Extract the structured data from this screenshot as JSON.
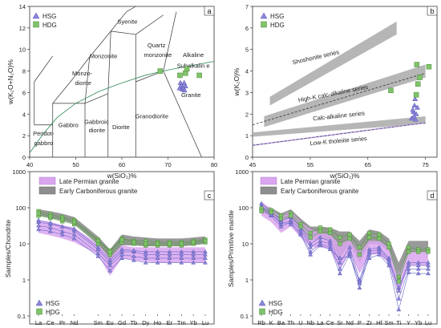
{
  "colors": {
    "hsg": "#8a86d8",
    "hdg": "#7fc36a",
    "late_permian_band": "#d9a6ef",
    "early_carb_band": "#8e8e8e",
    "shoshonite_band": "#a9a9a9",
    "hk_band": "#a9a9a9",
    "calc_band": "#a9a9a9",
    "lowk_line": "#c0a8f0"
  },
  "legend": {
    "hsg": "HSG",
    "hdg": "HDG",
    "late_permian": "Late Permian granite",
    "early_carb": "Early Carboniferous granite"
  },
  "chart_data": [
    {
      "panel": "a",
      "type": "scatter",
      "title": "",
      "xlabel": "w(SiO₂)%",
      "ylabel": "w(K₂O+N₂O)%",
      "xlim": [
        40,
        80
      ],
      "ylim": [
        0,
        14
      ],
      "xticks": [
        "40",
        "50",
        "60",
        "70",
        "80"
      ],
      "yticks": [
        "0",
        "2",
        "4",
        "6",
        "8",
        "10",
        "12",
        "14"
      ],
      "fields": [
        "Syenite",
        "Monzonite",
        "Quartz monzonite",
        "Alkaline",
        "Subalkaline",
        "Monzo-diorite",
        "Granite",
        "Granodiorite",
        "Gabbroic diorite",
        "Diorite",
        "Gabbro",
        "Peridot-gabbro"
      ],
      "series": [
        {
          "name": "HSG",
          "points": [
            [
              72.5,
              6.4
            ],
            [
              72.9,
              6.7
            ],
            [
              73.2,
              6.5
            ],
            [
              73.5,
              6.9
            ],
            [
              73.1,
              6.3
            ],
            [
              73.8,
              6.6
            ],
            [
              72.7,
              6.9
            ],
            [
              73.4,
              6.4
            ],
            [
              73.6,
              6.2
            ]
          ]
        },
        {
          "name": "HDG",
          "points": [
            [
              68.3,
              8.0
            ],
            [
              73.8,
              7.8
            ],
            [
              74.1,
              8.2
            ],
            [
              72.6,
              7.6
            ],
            [
              76.8,
              7.6
            ]
          ]
        }
      ]
    },
    {
      "panel": "b",
      "type": "scatter",
      "title": "",
      "xlabel": "w(SiO₂)%",
      "ylabel": "w(K₂O)%",
      "xlim": [
        45,
        77
      ],
      "ylim": [
        0,
        7
      ],
      "xticks": [
        "45",
        "55",
        "65",
        "75"
      ],
      "yticks": [
        "0",
        "1",
        "2",
        "3",
        "4",
        "5",
        "6",
        "7"
      ],
      "series_labels": [
        "Shoshonite series",
        "High-K calc-alkaline series",
        "Calc-alkaline series",
        "Low-K tholeiite series"
      ],
      "series": [
        {
          "name": "HSG",
          "points": [
            [
              72.9,
              2.1
            ],
            [
              73.1,
              2.4
            ],
            [
              72.6,
              1.8
            ],
            [
              73.4,
              2.0
            ],
            [
              73.0,
              1.9
            ],
            [
              72.8,
              2.2
            ],
            [
              73.3,
              1.75
            ],
            [
              73.6,
              2.3
            ],
            [
              73.2,
              2.7
            ]
          ]
        },
        {
          "name": "HDG",
          "points": [
            [
              69.0,
              3.1
            ],
            [
              73.5,
              4.3
            ],
            [
              74.0,
              3.7
            ],
            [
              73.7,
              3.4
            ],
            [
              75.6,
              4.2
            ],
            [
              73.4,
              2.9
            ]
          ]
        }
      ]
    },
    {
      "panel": "c",
      "type": "line",
      "title": "",
      "xlabel": "",
      "ylabel": "Samples/Chondrite",
      "categories": [
        "La",
        "Ce",
        "Pr",
        "Nd",
        "Sm",
        "Eu",
        "Gd",
        "Tb",
        "Dy",
        "Ho",
        "Er",
        "Tm",
        "Yb",
        "Lu"
      ],
      "xpos": [
        0,
        1,
        2,
        3,
        5,
        6,
        7,
        8,
        9,
        10,
        11,
        12,
        13,
        14
      ],
      "ylim": [
        0.1,
        1000
      ],
      "yscale": "log",
      "yticks": [
        "0.1",
        "1",
        "10",
        "100",
        "1000"
      ],
      "bands": [
        {
          "name": "Late Permian granite",
          "upper": [
            45,
            40,
            33,
            28,
            10,
            4,
            9,
            8,
            8,
            8,
            8,
            8,
            8,
            8
          ],
          "lower": [
            20,
            17,
            14,
            11,
            5,
            1.3,
            4,
            3.5,
            3.2,
            3.0,
            3.0,
            3.0,
            3.0,
            3.0
          ]
        },
        {
          "name": "Early Carboniferous granite",
          "upper": [
            90,
            80,
            68,
            55,
            16,
            7,
            18,
            16,
            15,
            14,
            14,
            14,
            15,
            16
          ],
          "lower": [
            60,
            52,
            44,
            36,
            10,
            3.5,
            9,
            9,
            8.5,
            8.5,
            8.5,
            8.5,
            9,
            10
          ]
        }
      ],
      "series": [
        {
          "name": "HSG",
          "values": [
            [
              40,
              35,
              30,
              23,
              7,
              3.0,
              6,
              6,
              5,
              5,
              5,
              5,
              5,
              5
            ],
            [
              32,
              28,
              22,
              18,
              5.5,
              2.5,
              5,
              4.5,
              4,
              4,
              4,
              4,
              4,
              4
            ],
            [
              25,
              22,
              18,
              14,
              4.5,
              1.8,
              4,
              3.5,
              3,
              3,
              3,
              3,
              3,
              3
            ],
            [
              45,
              38,
              30,
              26,
              8,
              3.5,
              7,
              6.5,
              6,
              6,
              6,
              6,
              6,
              6
            ]
          ]
        },
        {
          "name": "HDG",
          "values": [
            [
              80,
              65,
              55,
              45,
              13,
              6.5,
              14,
              12,
              12,
              11,
              11,
              11,
              12,
              13
            ],
            [
              60,
              52,
              42,
              35,
              10,
              5,
              11,
              10,
              9,
              9,
              9,
              9,
              10,
              11
            ],
            [
              70,
              58,
              48,
              40,
              12,
              6,
              13,
              11,
              10,
              10,
              10,
              10,
              11,
              12
            ]
          ]
        }
      ]
    },
    {
      "panel": "d",
      "type": "line",
      "title": "",
      "xlabel": "",
      "ylabel": "Samples/Primitive mantle",
      "categories": [
        "Rb",
        "K",
        "Ba",
        "Th",
        "U",
        "Nb",
        "La",
        "Ce",
        "Sr",
        "Nd",
        "P",
        "Zr",
        "Hf",
        "Sm",
        "Ti",
        "Y",
        "Yb",
        "Lu"
      ],
      "xpos": [
        0,
        1,
        2,
        3,
        4,
        5,
        6,
        7,
        8,
        9,
        10,
        11,
        12,
        13,
        14,
        15,
        16,
        17
      ],
      "ylim": [
        0.1,
        1000
      ],
      "yscale": "log",
      "yticks": [
        "0.1",
        "1",
        "10",
        "100",
        "1000"
      ],
      "bands": [
        {
          "name": "Late Permian granite",
          "upper": [
            150,
            90,
            60,
            80,
            40,
            25,
            20,
            18,
            10,
            14,
            6,
            12,
            12,
            8,
            1.5,
            6,
            6,
            6
          ],
          "lower": [
            60,
            40,
            20,
            30,
            15,
            8,
            8,
            7,
            2,
            6,
            1.5,
            5,
            5,
            3,
            0.4,
            2.5,
            2.5,
            2.5
          ]
        },
        {
          "name": "Early Carboniferous granite",
          "upper": [
            120,
            100,
            70,
            90,
            50,
            30,
            30,
            28,
            22,
            22,
            12,
            25,
            22,
            14,
            3,
            12,
            12,
            12
          ],
          "lower": [
            70,
            60,
            40,
            50,
            25,
            12,
            14,
            12,
            4,
            10,
            3,
            10,
            10,
            6,
            1,
            6,
            6,
            6
          ]
        }
      ],
      "series": [
        {
          "name": "HSG",
          "values": [
            [
              130,
              80,
              45,
              55,
              30,
              10,
              15,
              12,
              3,
              8,
              1.0,
              7,
              8,
              4,
              0.6,
              3,
              3,
              3
            ],
            [
              110,
              70,
              35,
              45,
              25,
              8,
              12,
              10,
              2,
              6,
              0.8,
              6,
              7,
              3.5,
              0.5,
              2.5,
              2.5,
              2.5
            ],
            [
              90,
              60,
              30,
              40,
              20,
              6,
              10,
              8,
              1.5,
              5,
              0.6,
              5,
              6,
              3,
              0.3,
              2,
              2,
              2
            ],
            [
              100,
              65,
              40,
              35,
              18,
              5,
              9,
              7,
              4,
              4.5,
              0.9,
              4,
              5,
              2.5,
              0.15,
              1.6,
              1.5,
              1.5
            ]
          ]
        },
        {
          "name": "HDG",
          "values": [
            [
              95,
              85,
              60,
              70,
              35,
              20,
              28,
              25,
              15,
              18,
              8,
              20,
              18,
              10,
              1.2,
              8,
              7,
              7
            ],
            [
              80,
              75,
              50,
              60,
              30,
              15,
              22,
              20,
              10,
              14,
              5,
              15,
              14,
              8,
              0.9,
              6,
              6,
              6
            ]
          ]
        }
      ]
    }
  ],
  "panels": {
    "a": "a",
    "b": "b",
    "c": "c",
    "d": "d"
  }
}
